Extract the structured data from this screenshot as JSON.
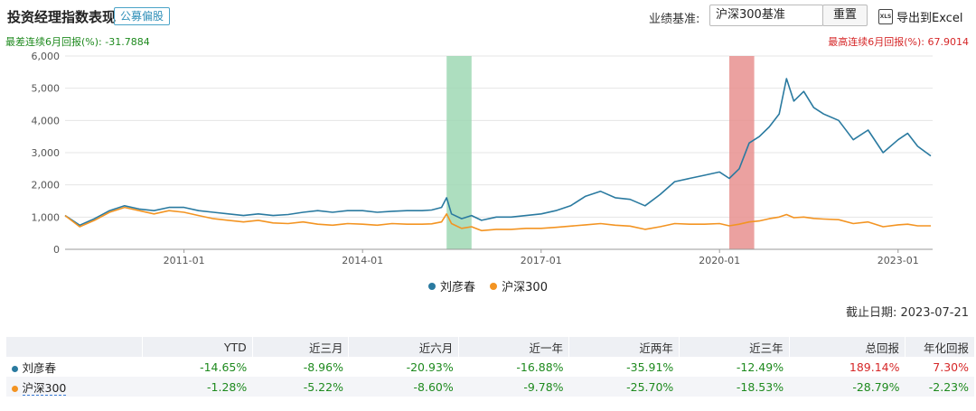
{
  "header": {
    "title": "投资经理指数表现",
    "tag": "公募偏股",
    "benchmark_label": "业绩基准:",
    "benchmark_value": "沪深300基准",
    "reset_label": "重置",
    "export_label": "导出到Excel",
    "xls_icon_text": "XLS"
  },
  "stats": {
    "worst": "最差连续6月回报(%): -31.7884",
    "best": "最高连续6月回报(%): 67.9014"
  },
  "cutoff": "截止日期: 2023-07-21",
  "colors": {
    "manager": "#2a7aa0",
    "benchmark": "#f39422",
    "green_band": "#9fd8b4",
    "red_band": "#e8918f",
    "positive": "#d62728",
    "negative": "#1e8a1e"
  },
  "chart_data": {
    "type": "line",
    "ylim": [
      0,
      6000
    ],
    "yticks": [
      0,
      1000,
      2000,
      3000,
      4000,
      5000,
      6000
    ],
    "ytick_labels": [
      "0",
      "1,000",
      "2,000",
      "3,000",
      "4,000",
      "5,000",
      "6,000"
    ],
    "xlim": [
      "2009-01-01",
      "2023-08-01"
    ],
    "xtick_labels": [
      "2011-01",
      "2014-01",
      "2017-01",
      "2020-01",
      "2023-01"
    ],
    "xticks": [
      "2011-01-01",
      "2014-01-01",
      "2017-01-01",
      "2020-01-01",
      "2023-01-01"
    ],
    "bands": [
      {
        "start": "2015-06-01",
        "end": "2015-11-01",
        "color": "green"
      },
      {
        "start": "2020-03-01",
        "end": "2020-08-01",
        "color": "red"
      }
    ],
    "series": [
      {
        "name": "刘彦春",
        "x": [
          "2009-01-01",
          "2009-04-01",
          "2009-07-01",
          "2009-10-01",
          "2010-01-01",
          "2010-04-01",
          "2010-07-01",
          "2010-10-01",
          "2011-01-01",
          "2011-04-01",
          "2011-07-01",
          "2011-10-01",
          "2012-01-01",
          "2012-04-01",
          "2012-07-01",
          "2012-10-01",
          "2013-01-01",
          "2013-04-01",
          "2013-07-01",
          "2013-10-01",
          "2014-01-01",
          "2014-04-01",
          "2014-07-01",
          "2014-10-01",
          "2015-01-01",
          "2015-03-01",
          "2015-05-01",
          "2015-06-01",
          "2015-07-01",
          "2015-09-01",
          "2015-11-01",
          "2016-01-01",
          "2016-04-01",
          "2016-07-01",
          "2016-10-01",
          "2017-01-01",
          "2017-04-01",
          "2017-07-01",
          "2017-10-01",
          "2018-01-01",
          "2018-04-01",
          "2018-07-01",
          "2018-10-01",
          "2019-01-01",
          "2019-04-01",
          "2019-07-01",
          "2019-10-01",
          "2020-01-01",
          "2020-03-01",
          "2020-05-01",
          "2020-07-01",
          "2020-09-01",
          "2020-11-01",
          "2021-01-01",
          "2021-02-15",
          "2021-04-01",
          "2021-06-01",
          "2021-08-01",
          "2021-10-01",
          "2022-01-01",
          "2022-04-01",
          "2022-07-01",
          "2022-10-01",
          "2023-01-01",
          "2023-03-01",
          "2023-05-01",
          "2023-07-21"
        ],
        "values": [
          1050,
          750,
          950,
          1200,
          1350,
          1250,
          1200,
          1300,
          1300,
          1200,
          1150,
          1100,
          1050,
          1100,
          1050,
          1080,
          1150,
          1200,
          1150,
          1200,
          1200,
          1150,
          1180,
          1200,
          1200,
          1220,
          1300,
          1600,
          1100,
          950,
          1050,
          900,
          1000,
          1000,
          1050,
          1100,
          1200,
          1350,
          1650,
          1800,
          1600,
          1550,
          1350,
          1700,
          2100,
          2200,
          2300,
          2400,
          2200,
          2500,
          3300,
          3500,
          3800,
          4200,
          5300,
          4600,
          4900,
          4400,
          4200,
          4000,
          3400,
          3700,
          3000,
          3400,
          3600,
          3200,
          2900
        ]
      },
      {
        "name": "沪深300",
        "x": [
          "2009-01-01",
          "2009-04-01",
          "2009-07-01",
          "2009-10-01",
          "2010-01-01",
          "2010-04-01",
          "2010-07-01",
          "2010-10-01",
          "2011-01-01",
          "2011-04-01",
          "2011-07-01",
          "2011-10-01",
          "2012-01-01",
          "2012-04-01",
          "2012-07-01",
          "2012-10-01",
          "2013-01-01",
          "2013-04-01",
          "2013-07-01",
          "2013-10-01",
          "2014-01-01",
          "2014-04-01",
          "2014-07-01",
          "2014-10-01",
          "2015-01-01",
          "2015-03-01",
          "2015-05-01",
          "2015-06-01",
          "2015-07-01",
          "2015-09-01",
          "2015-11-01",
          "2016-01-01",
          "2016-04-01",
          "2016-07-01",
          "2016-10-01",
          "2017-01-01",
          "2017-04-01",
          "2017-07-01",
          "2017-10-01",
          "2018-01-01",
          "2018-04-01",
          "2018-07-01",
          "2018-10-01",
          "2019-01-01",
          "2019-04-01",
          "2019-07-01",
          "2019-10-01",
          "2020-01-01",
          "2020-03-01",
          "2020-05-01",
          "2020-07-01",
          "2020-09-01",
          "2020-11-01",
          "2021-01-01",
          "2021-02-15",
          "2021-04-01",
          "2021-06-01",
          "2021-08-01",
          "2021-10-01",
          "2022-01-01",
          "2022-04-01",
          "2022-07-01",
          "2022-10-01",
          "2023-01-01",
          "2023-03-01",
          "2023-05-01",
          "2023-07-21"
        ],
        "values": [
          1050,
          700,
          900,
          1150,
          1300,
          1200,
          1100,
          1200,
          1150,
          1050,
          950,
          900,
          850,
          900,
          820,
          800,
          850,
          780,
          750,
          800,
          780,
          750,
          800,
          780,
          780,
          790,
          850,
          1100,
          800,
          650,
          700,
          580,
          620,
          620,
          650,
          650,
          680,
          720,
          760,
          800,
          750,
          720,
          620,
          700,
          800,
          780,
          780,
          800,
          730,
          780,
          850,
          880,
          950,
          1000,
          1080,
          980,
          1000,
          960,
          940,
          920,
          800,
          850,
          700,
          760,
          780,
          730,
          730
        ]
      }
    ]
  },
  "legend": {
    "manager": "刘彦春",
    "benchmark": "沪深300"
  },
  "table": {
    "headers": [
      "",
      "YTD",
      "近三月",
      "近六月",
      "近一年",
      "近两年",
      "近三年",
      "总回报",
      "年化回报"
    ],
    "rows": [
      {
        "name": "刘彦春",
        "cells": [
          "-14.65%",
          "-8.96%",
          "-20.93%",
          "-16.88%",
          "-35.91%",
          "-12.49%",
          "189.14%",
          "7.30%"
        ]
      },
      {
        "name": "沪深300",
        "cells": [
          "-1.28%",
          "-5.22%",
          "-8.60%",
          "-9.78%",
          "-25.70%",
          "-18.53%",
          "-28.79%",
          "-2.23%"
        ]
      }
    ]
  }
}
